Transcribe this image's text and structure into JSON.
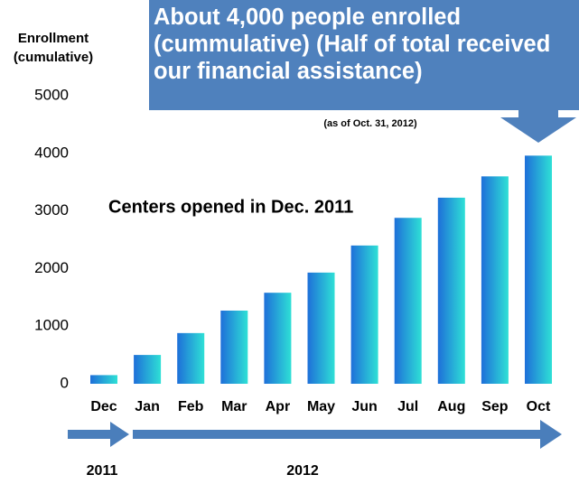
{
  "chart_data": {
    "type": "bar",
    "ylabel": "Enrollment (cumulative)",
    "callout": "About 4,000 people enrolled (cummulative) (Half of total received our financial assistance)",
    "note": "(as of Oct. 31, 2012)",
    "annotation": "Centers opened in Dec. 2011",
    "categories": [
      "Dec",
      "Jan",
      "Feb",
      "Mar",
      "Apr",
      "May",
      "Jun",
      "Jul",
      "Aug",
      "Sep",
      "Oct"
    ],
    "values": [
      150,
      500,
      880,
      1270,
      1580,
      1930,
      2400,
      2880,
      3230,
      3600,
      3960
    ],
    "ylim": [
      0,
      5000
    ],
    "yticks": [
      0,
      1000,
      2000,
      3000,
      4000,
      5000
    ],
    "years": [
      "2011",
      "2012"
    ]
  }
}
